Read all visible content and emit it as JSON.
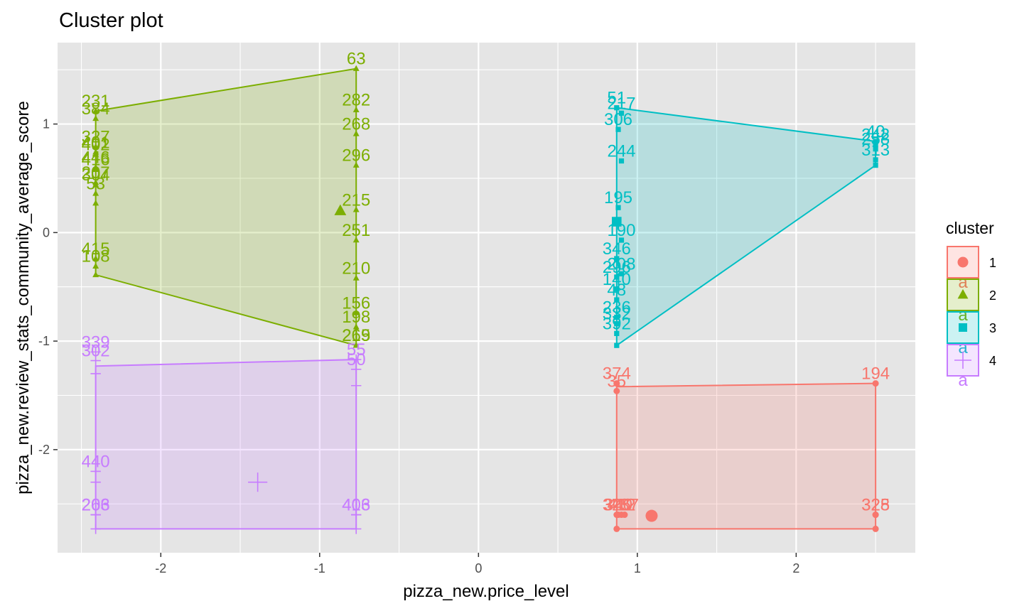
{
  "chart_data": {
    "type": "scatter",
    "title": "Cluster plot",
    "xlabel": "pizza_new.price_level",
    "ylabel": "pizza_new.review_stats_community_average_score",
    "xlim": [
      -2.65,
      2.75
    ],
    "ylim": [
      -2.95,
      1.75
    ],
    "x_ticks": [
      -2,
      -1,
      0,
      1,
      2
    ],
    "x_tick_labels": [
      "-2",
      "-1",
      "0",
      "1",
      "2"
    ],
    "y_ticks": [
      -2,
      -1,
      0,
      1
    ],
    "y_tick_labels": [
      "-2",
      "-1",
      "0",
      "1"
    ],
    "grid": true,
    "legend": {
      "title": "cluster",
      "placement": "right",
      "items": [
        {
          "label": "1",
          "shape": "circle",
          "color": "#F8766D"
        },
        {
          "label": "2",
          "shape": "triangle",
          "color": "#7CAE00"
        },
        {
          "label": "3",
          "shape": "square",
          "color": "#00BFC4"
        },
        {
          "label": "4",
          "shape": "cross",
          "color": "#C77CFF"
        }
      ],
      "key_glyph_text": "a"
    },
    "colors": {
      "panel_background": "#E5E5E5",
      "grid_line": "#FFFFFF",
      "tick_text": "#4D4D4D"
    },
    "series": [
      {
        "name": "1",
        "color": "#F8766D",
        "shape": "circle",
        "hull": [
          [
            0.87,
            -1.42
          ],
          [
            2.5,
            -1.39
          ],
          [
            2.5,
            -2.73
          ],
          [
            0.87,
            -2.73
          ]
        ],
        "centroid": [
          1.09,
          -2.61
        ],
        "points": [
          {
            "x": 0.87,
            "y": -1.39,
            "label": "374"
          },
          {
            "x": 0.87,
            "y": -1.46,
            "label": "35"
          },
          {
            "x": 2.5,
            "y": -1.39,
            "label": "194"
          },
          {
            "x": 0.87,
            "y": -2.6,
            "label": "325"
          },
          {
            "x": 0.88,
            "y": -2.6,
            "label": "340"
          },
          {
            "x": 0.9,
            "y": -2.6,
            "label": "412"
          },
          {
            "x": 0.92,
            "y": -2.6,
            "label": "437"
          },
          {
            "x": 0.87,
            "y": -2.73,
            "label": ""
          },
          {
            "x": 2.5,
            "y": -2.6,
            "label": "325"
          },
          {
            "x": 2.5,
            "y": -2.6,
            "label": "328"
          },
          {
            "x": 2.5,
            "y": -2.73,
            "label": ""
          }
        ]
      },
      {
        "name": "2",
        "color": "#7CAE00",
        "shape": "triangle",
        "hull": [
          [
            -2.41,
            1.12
          ],
          [
            -0.77,
            1.51
          ],
          [
            -0.77,
            -1.04
          ],
          [
            -2.41,
            -0.39
          ]
        ],
        "centroid": [
          -0.87,
          0.2
        ],
        "points": [
          {
            "x": -0.77,
            "y": 1.51,
            "label": "63"
          },
          {
            "x": -2.41,
            "y": 1.12,
            "label": "231"
          },
          {
            "x": -2.41,
            "y": 1.05,
            "label": "384"
          },
          {
            "x": -2.41,
            "y": 0.79,
            "label": "327"
          },
          {
            "x": -2.41,
            "y": 0.74,
            "label": "401"
          },
          {
            "x": -2.41,
            "y": 0.72,
            "label": "402"
          },
          {
            "x": -2.41,
            "y": 0.6,
            "label": "446"
          },
          {
            "x": -2.41,
            "y": 0.58,
            "label": "416"
          },
          {
            "x": -2.41,
            "y": 0.46,
            "label": "207"
          },
          {
            "x": -2.41,
            "y": 0.44,
            "label": "304"
          },
          {
            "x": -2.41,
            "y": 0.36,
            "label": "53"
          },
          {
            "x": -2.41,
            "y": 0.27,
            "label": ""
          },
          {
            "x": -2.41,
            "y": -0.24,
            "label": "415"
          },
          {
            "x": -2.41,
            "y": -0.31,
            "label": "108"
          },
          {
            "x": -2.41,
            "y": -0.39,
            "label": ""
          },
          {
            "x": -0.77,
            "y": 1.13,
            "label": "282"
          },
          {
            "x": -0.77,
            "y": 0.91,
            "label": "268"
          },
          {
            "x": -0.77,
            "y": 0.62,
            "label": "296"
          },
          {
            "x": -0.77,
            "y": 0.21,
            "label": "215"
          },
          {
            "x": -0.77,
            "y": -0.07,
            "label": "251"
          },
          {
            "x": -0.77,
            "y": -0.42,
            "label": "210"
          },
          {
            "x": -0.77,
            "y": -0.74,
            "label": "156"
          },
          {
            "x": -0.77,
            "y": -0.87,
            "label": "198"
          },
          {
            "x": -0.77,
            "y": -1.04,
            "label": "265"
          },
          {
            "x": -0.77,
            "y": -1.04,
            "label": "219"
          }
        ]
      },
      {
        "name": "3",
        "color": "#00BFC4",
        "shape": "square",
        "hull": [
          [
            0.87,
            1.15
          ],
          [
            2.5,
            0.84
          ],
          [
            2.5,
            0.62
          ],
          [
            0.87,
            -1.04
          ]
        ],
        "centroid": [
          0.87,
          0.1
        ],
        "points": [
          {
            "x": 0.87,
            "y": 1.15,
            "label": "51"
          },
          {
            "x": 0.9,
            "y": 1.1,
            "label": "217"
          },
          {
            "x": 0.88,
            "y": 0.95,
            "label": "306"
          },
          {
            "x": 0.9,
            "y": 0.66,
            "label": "244"
          },
          {
            "x": 0.88,
            "y": 0.23,
            "label": "195"
          },
          {
            "x": 0.9,
            "y": -0.07,
            "label": "190"
          },
          {
            "x": 0.87,
            "y": -0.24,
            "label": "346"
          },
          {
            "x": 0.9,
            "y": -0.38,
            "label": "208"
          },
          {
            "x": 0.87,
            "y": -0.41,
            "label": "296"
          },
          {
            "x": 0.87,
            "y": -0.52,
            "label": "140"
          },
          {
            "x": 0.87,
            "y": -0.62,
            "label": "48"
          },
          {
            "x": 0.87,
            "y": -0.78,
            "label": "236"
          },
          {
            "x": 0.87,
            "y": -0.84,
            "label": "332"
          },
          {
            "x": 0.87,
            "y": -0.93,
            "label": "392"
          },
          {
            "x": 0.87,
            "y": -1.04,
            "label": ""
          },
          {
            "x": 2.5,
            "y": 0.84,
            "label": "40"
          },
          {
            "x": 2.5,
            "y": 0.81,
            "label": "242"
          },
          {
            "x": 2.5,
            "y": 0.77,
            "label": "258"
          },
          {
            "x": 2.5,
            "y": 0.67,
            "label": "313"
          },
          {
            "x": 2.5,
            "y": 0.62,
            "label": ""
          }
        ]
      },
      {
        "name": "4",
        "color": "#C77CFF",
        "shape": "cross",
        "hull": [
          [
            -2.41,
            -1.23
          ],
          [
            -0.77,
            -1.17
          ],
          [
            -0.77,
            -2.73
          ],
          [
            -2.41,
            -2.73
          ]
        ],
        "centroid": [
          -1.39,
          -2.3
        ],
        "points": [
          {
            "x": -2.41,
            "y": -1.1,
            "label": "339"
          },
          {
            "x": -2.41,
            "y": -1.18,
            "label": "302"
          },
          {
            "x": -2.41,
            "y": -1.3,
            "label": ""
          },
          {
            "x": -0.77,
            "y": -1.17,
            "label": "55"
          },
          {
            "x": -0.77,
            "y": -1.26,
            "label": "50"
          },
          {
            "x": -0.77,
            "y": -1.41,
            "label": ""
          },
          {
            "x": -2.41,
            "y": -2.2,
            "label": "440"
          },
          {
            "x": -2.41,
            "y": -2.3,
            "label": ""
          },
          {
            "x": -2.41,
            "y": -2.6,
            "label": "206"
          },
          {
            "x": -2.41,
            "y": -2.6,
            "label": "263"
          },
          {
            "x": -2.41,
            "y": -2.73,
            "label": ""
          },
          {
            "x": -0.77,
            "y": -2.6,
            "label": "403"
          },
          {
            "x": -0.77,
            "y": -2.6,
            "label": "416"
          },
          {
            "x": -0.77,
            "y": -2.73,
            "label": ""
          }
        ]
      }
    ]
  }
}
